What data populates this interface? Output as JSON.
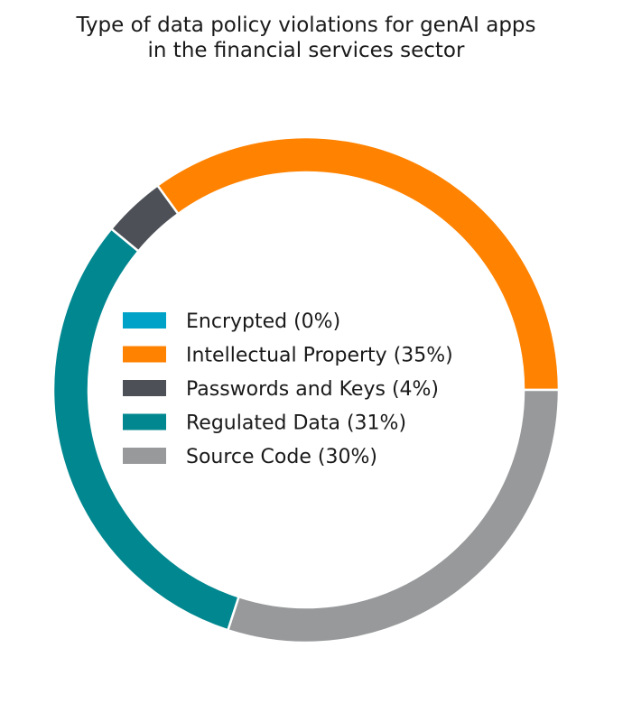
{
  "chart_data": {
    "type": "pie",
    "title": "Type of data policy violations for genAI apps in the financial services sector",
    "title_lines": [
      "Type of data policy violations for genAI apps",
      "in the financial services sector"
    ],
    "categories": [
      "Encrypted (0%)",
      "Intellectual Property (35%)",
      "Passwords and Keys (4%)",
      "Regulated Data (31%)",
      "Source Code (30%)"
    ],
    "values": [
      0,
      35,
      4,
      31,
      30
    ],
    "colors": [
      "#00a3c7",
      "#ff8200",
      "#4d5157",
      "#00878f",
      "#97999b"
    ],
    "donut": true,
    "start_angle": "3 o'clock",
    "direction": "counterclockwise",
    "legend": "center"
  }
}
